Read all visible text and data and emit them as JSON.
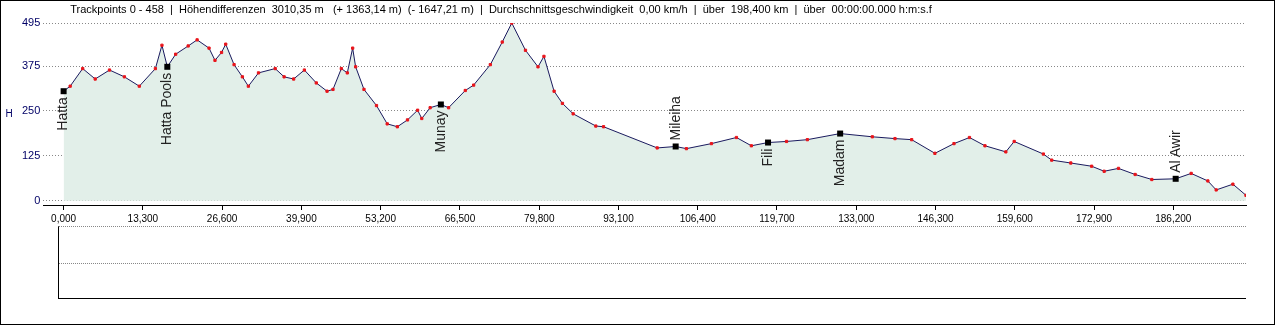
{
  "chart_data": {
    "type": "area",
    "title": "Trackpoints 0 - 458  |  Höhendifferenzen  3010,35 m   (+ 1363,14 m)  (- 1647,21 m)  |  Durchschnittsgeschwindigkeit  0,00 km/h  |  über  198,400 km  |  über  00:00:00.000 h:m:s.f",
    "ylabel": "H",
    "series": [
      {
        "color": "#1a1a5e",
        "x": [
          0,
          1.1,
          3.2,
          5.3,
          7.7,
          10.2,
          12.7,
          15.4,
          16.5,
          17.4,
          18.8,
          20.9,
          22.4,
          24.4,
          25.4,
          26.5,
          27.2,
          28.6,
          30.0,
          31.0,
          32.7,
          35.5,
          37.0,
          38.6,
          40.4,
          42.4,
          44.2,
          45.2,
          46.6,
          47.6,
          48.5,
          49.0,
          50.4,
          52.5,
          54.3,
          56.0,
          57.7,
          59.4,
          60.1,
          61.5,
          63.3,
          64.6,
          67.4,
          68.8,
          71.6,
          73.6,
          75.2,
          77.5,
          79.6,
          80.6,
          82.3,
          83.7,
          85.5,
          89.3,
          90.6,
          99.6,
          102.7,
          104.5,
          108.7,
          112.9,
          115.4,
          118.2,
          121.3,
          124.8,
          130.3,
          135.7,
          139.5,
          142.3,
          146.2,
          149.4,
          152.0,
          154.6,
          158.1,
          159.5,
          164.4,
          165.8,
          169.0,
          172.5,
          174.6,
          177.0,
          179.8,
          182.6,
          186.6,
          189.2,
          192.0,
          193.4,
          196.2,
          198.4
        ],
        "values": [
          305,
          319,
          368,
          339,
          364,
          345,
          319,
          368,
          433,
          373,
          408,
          431,
          448,
          425,
          391,
          413,
          436,
          379,
          345,
          319,
          356,
          368,
          345,
          339,
          364,
          328,
          305,
          310,
          368,
          356,
          425,
          373,
          310,
          265,
          214,
          206,
          225,
          252,
          229,
          259,
          268,
          259,
          307,
          322,
          379,
          442,
          495,
          419,
          373,
          402,
          305,
          271,
          242,
          208,
          206,
          147,
          151,
          145,
          159,
          176,
          153,
          162,
          165,
          170,
          187,
          178,
          173,
          170,
          132,
          159,
          176,
          153,
          136,
          165,
          130,
          113,
          105,
          96,
          82,
          90,
          73,
          59,
          61,
          76,
          55,
          30,
          46,
          15
        ]
      }
    ],
    "xlim": [
      -3.4,
      198.4
    ],
    "ylim": [
      -12,
      495
    ],
    "xticks": [
      {
        "value": 0,
        "label": "0,000"
      },
      {
        "value": 13.3,
        "label": "13,300"
      },
      {
        "value": 26.6,
        "label": "26,600"
      },
      {
        "value": 39.9,
        "label": "39,900"
      },
      {
        "value": 53.2,
        "label": "53,200"
      },
      {
        "value": 66.5,
        "label": "66,500"
      },
      {
        "value": 79.8,
        "label": "79,800"
      },
      {
        "value": 93.1,
        "label": "93,100"
      },
      {
        "value": 106.4,
        "label": "106,400"
      },
      {
        "value": 119.7,
        "label": "119,700"
      },
      {
        "value": 133,
        "label": "133,000"
      },
      {
        "value": 146.3,
        "label": "146,300"
      },
      {
        "value": 159.6,
        "label": "159,600"
      },
      {
        "value": 172.9,
        "label": "172,900"
      },
      {
        "value": 186.2,
        "label": "186,200"
      }
    ],
    "yticks": [
      0,
      125,
      250,
      375,
      495
    ],
    "grid": "y",
    "marker": "square",
    "legend": false,
    "annotations": [
      {
        "text": "Hatta",
        "x": 0,
        "y": 305
      },
      {
        "text": "Hatta Pools",
        "x": 17.4,
        "y": 373
      },
      {
        "text": "Munay",
        "x": 63.3,
        "y": 268
      },
      {
        "text": "Mileiha",
        "x": 102.7,
        "y": 151
      },
      {
        "text": "Fili",
        "x": 118.2,
        "y": 162
      },
      {
        "text": "Madam",
        "x": 130.3,
        "y": 187
      },
      {
        "text": "Al Awir",
        "x": 186.6,
        "y": 61
      }
    ]
  }
}
